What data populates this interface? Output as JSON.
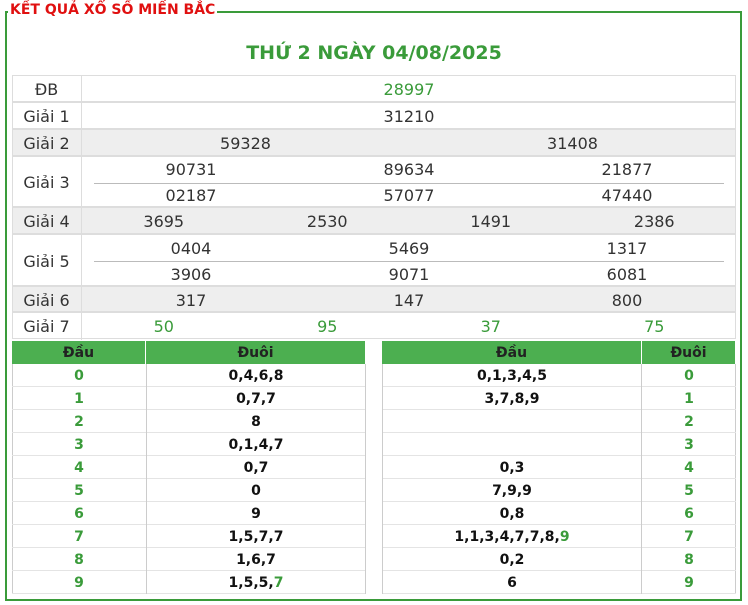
{
  "header": {
    "title": "KẾT QUẢ XỔ SỐ MIỀN BẮC",
    "date_title": "THỨ 2 NGÀY 04/08/2025"
  },
  "results": {
    "rows": [
      {
        "label": "ĐB",
        "lines": [
          [
            "28997"
          ]
        ],
        "color": "#3a9b3a"
      },
      {
        "label": "Giải 1",
        "lines": [
          [
            "31210"
          ]
        ]
      },
      {
        "label": "Giải 2",
        "lines": [
          [
            "59328",
            "31408"
          ]
        ]
      },
      {
        "label": "Giải 3",
        "lines": [
          [
            "90731",
            "89634",
            "21877"
          ],
          [
            "02187",
            "57077",
            "47440"
          ]
        ]
      },
      {
        "label": "Giải 4",
        "lines": [
          [
            "3695",
            "2530",
            "1491",
            "2386"
          ]
        ]
      },
      {
        "label": "Giải 5",
        "lines": [
          [
            "0404",
            "5469",
            "1317"
          ],
          [
            "3906",
            "9071",
            "6081"
          ]
        ]
      },
      {
        "label": "Giải 6",
        "lines": [
          [
            "317",
            "147",
            "800"
          ]
        ]
      },
      {
        "label": "Giải 7",
        "lines": [
          [
            "50",
            "95",
            "37",
            "75"
          ]
        ],
        "color": "#3a9b3a"
      }
    ]
  },
  "loto": {
    "left": {
      "headers": [
        "Đầu",
        "Đuôi"
      ],
      "rows": [
        {
          "digit": "0",
          "list": [
            "0,4,6,8"
          ]
        },
        {
          "digit": "1",
          "list": [
            "0,7,7"
          ]
        },
        {
          "digit": "2",
          "list": [
            "8"
          ]
        },
        {
          "digit": "3",
          "list": [
            "0,1,4,7"
          ]
        },
        {
          "digit": "4",
          "list": [
            "0,7"
          ]
        },
        {
          "digit": "5",
          "list": [
            "0"
          ]
        },
        {
          "digit": "6",
          "list": [
            "9"
          ]
        },
        {
          "digit": "7",
          "list": [
            "1,5,7,7"
          ]
        },
        {
          "digit": "8",
          "list": [
            "1,6,7"
          ]
        },
        {
          "digit": "9",
          "list": [
            "1,5,5,",
            "7"
          ]
        }
      ]
    },
    "right": {
      "headers": [
        "Đầu",
        "Đuôi"
      ],
      "rows": [
        {
          "digit": "0",
          "list": [
            "0,1,3,4,5"
          ]
        },
        {
          "digit": "1",
          "list": [
            "3,7,8,9"
          ]
        },
        {
          "digit": "2",
          "list": null
        },
        {
          "digit": "3",
          "list": null
        },
        {
          "digit": "4",
          "list": [
            "0,3"
          ]
        },
        {
          "digit": "5",
          "list": [
            "7,9,9"
          ]
        },
        {
          "digit": "6",
          "list": [
            "0,8"
          ]
        },
        {
          "digit": "7",
          "list": [
            "1,1,3,4,7,7,8,",
            "9"
          ]
        },
        {
          "digit": "8",
          "list": [
            "0,2"
          ]
        },
        {
          "digit": "9",
          "list": [
            "6"
          ]
        }
      ]
    }
  }
}
